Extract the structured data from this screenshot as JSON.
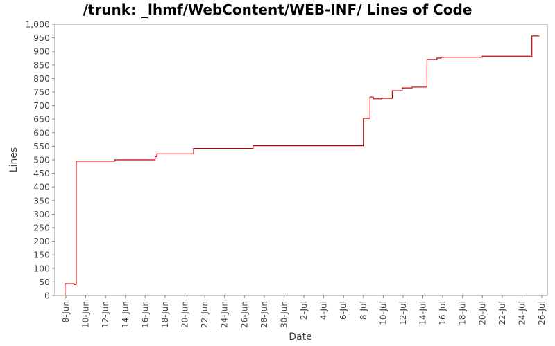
{
  "chart_data": {
    "type": "line",
    "title": "/trunk: _lhmf/WebContent/WEB-INF/ Lines of Code",
    "xlabel": "Date",
    "ylabel": "Lines",
    "ylim": [
      0,
      1000
    ],
    "y_ticks": [
      0,
      50,
      100,
      150,
      200,
      250,
      300,
      350,
      400,
      450,
      500,
      550,
      600,
      650,
      700,
      750,
      800,
      850,
      900,
      950,
      1000
    ],
    "y_tick_labels": [
      "0",
      "50",
      "100",
      "150",
      "200",
      "250",
      "300",
      "350",
      "400",
      "450",
      "500",
      "550",
      "600",
      "650",
      "700",
      "750",
      "800",
      "850",
      "900",
      "950",
      "1,000"
    ],
    "x_ticks": [
      "2011-06-08",
      "2011-06-10",
      "2011-06-12",
      "2011-06-14",
      "2011-06-16",
      "2011-06-18",
      "2011-06-20",
      "2011-06-22",
      "2011-06-24",
      "2011-06-26",
      "2011-06-28",
      "2011-06-30",
      "2011-07-02",
      "2011-07-04",
      "2011-07-06",
      "2011-07-08",
      "2011-07-10",
      "2011-07-12",
      "2011-07-14",
      "2011-07-16",
      "2011-07-18",
      "2011-07-20",
      "2011-07-22",
      "2011-07-24",
      "2011-07-26"
    ],
    "x_tick_labels": [
      "8-Jun",
      "10-Jun",
      "12-Jun",
      "14-Jun",
      "16-Jun",
      "18-Jun",
      "20-Jun",
      "22-Jun",
      "24-Jun",
      "26-Jun",
      "28-Jun",
      "30-Jun",
      "2-Jul",
      "4-Jul",
      "6-Jul",
      "8-Jul",
      "10-Jul",
      "12-Jul",
      "14-Jul",
      "16-Jul",
      "18-Jul",
      "20-Jul",
      "22-Jul",
      "24-Jul",
      "26-Jul"
    ],
    "xlim": [
      "2011-06-08T00:00",
      "2011-07-26T00:00"
    ],
    "grid": false,
    "step": true,
    "series": [
      {
        "color": "#c00000",
        "points": [
          [
            "2011-06-07T22:00",
            0
          ],
          [
            "2011-06-07T22:00",
            43
          ],
          [
            "2011-06-08T20:00",
            43
          ],
          [
            "2011-06-08T20:00",
            40
          ],
          [
            "2011-06-09T01:00",
            40
          ],
          [
            "2011-06-09T01:00",
            495
          ],
          [
            "2011-06-12T22:00",
            495
          ],
          [
            "2011-06-12T22:00",
            500
          ],
          [
            "2011-06-17T00:00",
            500
          ],
          [
            "2011-06-17T00:00",
            512
          ],
          [
            "2011-06-17T04:00",
            512
          ],
          [
            "2011-06-17T04:00",
            522
          ],
          [
            "2011-06-20T21:00",
            522
          ],
          [
            "2011-06-20T21:00",
            542
          ],
          [
            "2011-06-26T21:00",
            542
          ],
          [
            "2011-06-26T21:00",
            552
          ],
          [
            "2011-07-08T00:00",
            552
          ],
          [
            "2011-07-08T00:00",
            653
          ],
          [
            "2011-07-08T16:00",
            653
          ],
          [
            "2011-07-08T16:00",
            732
          ],
          [
            "2011-07-09T00:00",
            732
          ],
          [
            "2011-07-09T00:00",
            725
          ],
          [
            "2011-07-09T20:00",
            725
          ],
          [
            "2011-07-09T20:00",
            727
          ],
          [
            "2011-07-10T22:00",
            727
          ],
          [
            "2011-07-10T22:00",
            755
          ],
          [
            "2011-07-11T22:00",
            755
          ],
          [
            "2011-07-11T22:00",
            765
          ],
          [
            "2011-07-12T22:00",
            765
          ],
          [
            "2011-07-12T22:00",
            768
          ],
          [
            "2011-07-14T10:00",
            768
          ],
          [
            "2011-07-14T10:00",
            870
          ],
          [
            "2011-07-15T10:00",
            870
          ],
          [
            "2011-07-15T10:00",
            875
          ],
          [
            "2011-07-15T20:00",
            875
          ],
          [
            "2011-07-15T20:00",
            878
          ],
          [
            "2011-07-20T00:00",
            878
          ],
          [
            "2011-07-20T00:00",
            882
          ],
          [
            "2011-07-25T00:00",
            882
          ],
          [
            "2011-07-25T00:00",
            957
          ],
          [
            "2011-07-25T18:00",
            957
          ]
        ]
      }
    ]
  }
}
